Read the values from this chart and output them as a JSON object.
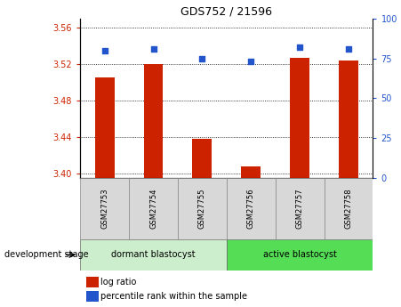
{
  "title": "GDS752 / 21596",
  "samples": [
    "GSM27753",
    "GSM27754",
    "GSM27755",
    "GSM27756",
    "GSM27757",
    "GSM27758"
  ],
  "log_ratio": [
    3.505,
    3.52,
    3.438,
    3.408,
    3.527,
    3.524
  ],
  "percentile_rank": [
    80,
    81,
    75,
    73,
    82,
    81
  ],
  "ylim_left": [
    3.395,
    3.57
  ],
  "ylim_right": [
    0,
    100
  ],
  "yticks_left": [
    3.4,
    3.44,
    3.48,
    3.52,
    3.56
  ],
  "yticks_right": [
    0,
    25,
    50,
    75,
    100
  ],
  "bar_color": "#cc2200",
  "dot_color": "#2255cc",
  "groups": [
    {
      "label": "dormant blastocyst",
      "indices": [
        0,
        1,
        2
      ],
      "color": "#cceecc"
    },
    {
      "label": "active blastocyst",
      "indices": [
        3,
        4,
        5
      ],
      "color": "#55dd55"
    }
  ],
  "group_label": "development stage",
  "sample_box_color": "#d8d8d8",
  "bar_width": 0.4
}
